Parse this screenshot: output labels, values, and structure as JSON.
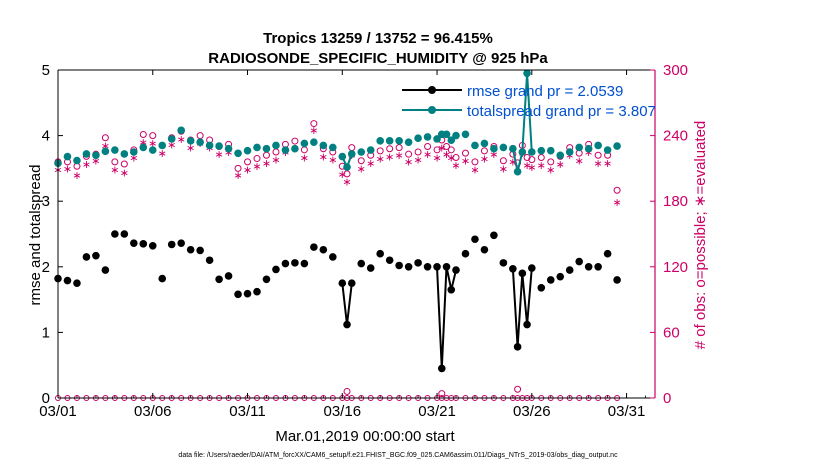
{
  "chart_data": {
    "type": "line",
    "title_line1": "Tropics 13259 / 13752 = 96.415%",
    "title_line2": "RADIOSONDE_SPECIFIC_HUMIDITY @ 925 hPa",
    "xlabel": "Mar.01,2019 00:00:00 start",
    "ylabel_left": "rmse and totalspread",
    "ylabel_right": "# of obs: o=possible; ∗=evaluated",
    "footnote": "data file: /Users/raeder/DAI/ATM_forcXX/CAM6_setup/f.e21.FHIST_BGC.f09_025.CAM6assim.011/Diags_NTrS_2019-03/obs_diag_output.nc",
    "xlim": [
      0,
      31.5
    ],
    "ylim_left": [
      0,
      5
    ],
    "ylim_right": [
      0,
      300
    ],
    "x_ticks": [
      0,
      5,
      10,
      15,
      20,
      25,
      30
    ],
    "x_tick_labels": [
      "03/01",
      "03/06",
      "03/11",
      "03/16",
      "03/21",
      "03/26",
      "03/31"
    ],
    "y_left_ticks": [
      "0",
      "1",
      "2",
      "3",
      "4",
      "5"
    ],
    "y_right_ticks": [
      "0",
      "60",
      "120",
      "180",
      "240",
      "300"
    ],
    "colors": {
      "rmse": "#000000",
      "totalspread": "#008080",
      "obs": "#cc0066",
      "legend_text": "#0050d0",
      "right_axis": "#cc0066"
    },
    "legend": [
      {
        "label": "rmse grand pr = 2.0539",
        "series": "rmse"
      },
      {
        "label": "totalspread grand pr = 3.807",
        "series": "totalspread"
      }
    ],
    "series": [
      {
        "name": "rmse",
        "values": [
          [
            0,
            1.82
          ],
          [
            0.5,
            1.79
          ],
          [
            1,
            1.75
          ],
          [
            1.5,
            2.15
          ],
          [
            2,
            2.17
          ],
          [
            2.5,
            1.95
          ],
          [
            3,
            2.5
          ],
          [
            3.5,
            2.5
          ],
          [
            4,
            2.36
          ],
          [
            4.5,
            2.35
          ],
          [
            5,
            2.32
          ],
          [
            5.5,
            1.82
          ],
          [
            6,
            2.34
          ],
          [
            6.5,
            2.36
          ],
          [
            7,
            2.26
          ],
          [
            7.5,
            2.25
          ],
          [
            8,
            2.1
          ],
          [
            8.5,
            1.81
          ],
          [
            9,
            1.86
          ],
          [
            9.5,
            1.58
          ],
          [
            10,
            1.59
          ],
          [
            10.5,
            1.62
          ],
          [
            11,
            1.81
          ],
          [
            11.5,
            1.96
          ],
          [
            12,
            2.05
          ],
          [
            12.5,
            2.06
          ],
          [
            13,
            2.05
          ],
          [
            13.5,
            2.3
          ],
          [
            14,
            2.26
          ],
          [
            14.5,
            2.15
          ],
          [
            15,
            1.75
          ],
          [
            15.25,
            1.12
          ],
          [
            15.5,
            1.75
          ],
          [
            16,
            2.05
          ],
          [
            16.5,
            1.98
          ],
          [
            17,
            2.2
          ],
          [
            17.5,
            2.1
          ],
          [
            18,
            2.02
          ],
          [
            18.5,
            2.0
          ],
          [
            19,
            2.06
          ],
          [
            19.5,
            2.0
          ],
          [
            20,
            2.0
          ],
          [
            20.25,
            0.45
          ],
          [
            20.5,
            2.0
          ],
          [
            20.75,
            1.65
          ],
          [
            21,
            1.95
          ],
          [
            21.5,
            2.2
          ],
          [
            22,
            2.42
          ],
          [
            22.5,
            2.26
          ],
          [
            23,
            2.48
          ],
          [
            23.5,
            2.06
          ],
          [
            24,
            1.97
          ],
          [
            24.25,
            0.78
          ],
          [
            24.5,
            1.9
          ],
          [
            24.75,
            1.12
          ],
          [
            25,
            1.98
          ],
          [
            25.5,
            1.68
          ],
          [
            26,
            1.8
          ],
          [
            26.5,
            1.85
          ],
          [
            27,
            1.95
          ],
          [
            27.5,
            2.08
          ],
          [
            28,
            2.0
          ],
          [
            28.5,
            2.0
          ],
          [
            29,
            2.2
          ],
          [
            29.5,
            1.8
          ]
        ]
      },
      {
        "name": "totalspread",
        "values": [
          [
            0,
            3.58
          ],
          [
            0.5,
            3.68
          ],
          [
            1,
            3.62
          ],
          [
            1.5,
            3.72
          ],
          [
            2,
            3.7
          ],
          [
            2.5,
            3.76
          ],
          [
            3,
            3.78
          ],
          [
            3.5,
            3.72
          ],
          [
            4,
            3.75
          ],
          [
            4.5,
            3.82
          ],
          [
            5,
            3.78
          ],
          [
            5.5,
            3.85
          ],
          [
            6,
            3.95
          ],
          [
            6.5,
            4.08
          ],
          [
            7,
            3.92
          ],
          [
            7.5,
            3.9
          ],
          [
            8,
            3.85
          ],
          [
            8.5,
            3.84
          ],
          [
            9,
            3.8
          ],
          [
            9.5,
            3.73
          ],
          [
            10,
            3.77
          ],
          [
            10.5,
            3.82
          ],
          [
            11,
            3.8
          ],
          [
            11.5,
            3.85
          ],
          [
            12,
            3.78
          ],
          [
            12.5,
            3.8
          ],
          [
            13,
            3.88
          ],
          [
            13.5,
            3.9
          ],
          [
            14,
            3.85
          ],
          [
            14.5,
            3.82
          ],
          [
            15,
            3.68
          ],
          [
            15.25,
            3.52
          ],
          [
            15.5,
            3.72
          ],
          [
            16,
            3.75
          ],
          [
            16.5,
            3.78
          ],
          [
            17,
            3.92
          ],
          [
            17.5,
            3.92
          ],
          [
            18,
            3.92
          ],
          [
            18.5,
            3.9
          ],
          [
            19,
            3.96
          ],
          [
            19.5,
            3.98
          ],
          [
            20,
            3.95
          ],
          [
            20.25,
            4.02
          ],
          [
            20.5,
            4.02
          ],
          [
            20.75,
            3.93
          ],
          [
            21,
            4.0
          ],
          [
            21.5,
            4.02
          ],
          [
            22,
            3.85
          ],
          [
            22.5,
            3.88
          ],
          [
            23,
            3.8
          ],
          [
            23.5,
            3.82
          ],
          [
            24,
            3.8
          ],
          [
            24.25,
            3.45
          ],
          [
            24.5,
            3.75
          ],
          [
            24.75,
            4.95
          ],
          [
            25,
            3.75
          ],
          [
            25.5,
            3.77
          ],
          [
            26,
            3.77
          ],
          [
            26.5,
            3.7
          ],
          [
            27,
            3.75
          ],
          [
            27.5,
            3.82
          ],
          [
            28,
            3.8
          ],
          [
            28.5,
            3.85
          ],
          [
            29,
            3.78
          ],
          [
            29.5,
            3.84
          ]
        ]
      },
      {
        "name": "obs_possible",
        "values": [
          [
            0,
            216
          ],
          [
            0.5,
            216
          ],
          [
            1,
            212
          ],
          [
            1.5,
            221
          ],
          [
            2,
            223
          ],
          [
            2.5,
            238
          ],
          [
            3,
            216
          ],
          [
            3.5,
            214
          ],
          [
            4,
            227
          ],
          [
            4.5,
            241
          ],
          [
            5,
            240
          ],
          [
            5.5,
            231
          ],
          [
            6,
            238
          ],
          [
            6.5,
            244
          ],
          [
            7,
            236
          ],
          [
            7.5,
            240
          ],
          [
            8,
            236
          ],
          [
            8.5,
            230
          ],
          [
            9,
            232
          ],
          [
            9.5,
            210
          ],
          [
            10,
            216
          ],
          [
            10.5,
            219
          ],
          [
            11,
            222
          ],
          [
            11.5,
            225
          ],
          [
            12,
            232
          ],
          [
            12.5,
            235
          ],
          [
            13,
            227
          ],
          [
            13.5,
            251
          ],
          [
            14,
            228
          ],
          [
            14.5,
            225
          ],
          [
            15,
            212
          ],
          [
            15.25,
            205
          ],
          [
            15.5,
            229
          ],
          [
            16,
            217
          ],
          [
            16.5,
            222
          ],
          [
            17,
            226
          ],
          [
            17.5,
            228
          ],
          [
            18,
            229
          ],
          [
            18.5,
            223
          ],
          [
            19,
            225
          ],
          [
            19.5,
            230
          ],
          [
            20,
            227
          ],
          [
            20.25,
            236
          ],
          [
            20.5,
            230
          ],
          [
            20.75,
            227
          ],
          [
            21,
            220
          ],
          [
            21.5,
            224
          ],
          [
            22,
            216
          ],
          [
            22.5,
            226
          ],
          [
            23,
            230
          ],
          [
            23.5,
            217
          ],
          [
            24,
            223
          ],
          [
            24.25,
            215
          ],
          [
            24.5,
            231
          ],
          [
            24.75,
            220
          ],
          [
            25,
            218
          ],
          [
            25.5,
            220
          ],
          [
            26,
            216
          ],
          [
            26.5,
            221
          ],
          [
            27,
            229
          ],
          [
            27.5,
            224
          ],
          [
            28,
            232
          ],
          [
            28.5,
            222
          ],
          [
            29,
            222
          ],
          [
            29.5,
            190
          ]
        ]
      },
      {
        "name": "obs_evaluated",
        "values": [
          [
            0,
            210
          ],
          [
            0.5,
            211
          ],
          [
            1,
            205
          ],
          [
            1.5,
            215
          ],
          [
            2,
            218
          ],
          [
            2.5,
            232
          ],
          [
            3,
            210
          ],
          [
            3.5,
            207
          ],
          [
            4,
            221
          ],
          [
            4.5,
            235
          ],
          [
            5,
            234
          ],
          [
            5.5,
            225
          ],
          [
            6,
            233
          ],
          [
            6.5,
            238
          ],
          [
            7,
            230
          ],
          [
            7.5,
            234
          ],
          [
            8,
            230
          ],
          [
            8.5,
            224
          ],
          [
            9,
            226
          ],
          [
            9.5,
            205
          ],
          [
            10,
            210
          ],
          [
            10.5,
            213
          ],
          [
            11,
            216
          ],
          [
            11.5,
            219
          ],
          [
            12,
            226
          ],
          [
            12.5,
            229
          ],
          [
            13,
            221
          ],
          [
            13.5,
            246
          ],
          [
            14,
            222
          ],
          [
            14.5,
            219
          ],
          [
            15,
            206
          ],
          [
            15.25,
            199
          ],
          [
            15.5,
            223
          ],
          [
            16,
            211
          ],
          [
            16.5,
            216
          ],
          [
            17,
            220
          ],
          [
            17.5,
            222
          ],
          [
            18,
            223
          ],
          [
            18.5,
            217
          ],
          [
            19,
            219
          ],
          [
            19.5,
            224
          ],
          [
            20,
            221
          ],
          [
            20.25,
            230
          ],
          [
            20.5,
            224
          ],
          [
            20.75,
            221
          ],
          [
            21,
            214
          ],
          [
            21.5,
            218
          ],
          [
            22,
            210
          ],
          [
            22.5,
            220
          ],
          [
            23,
            224
          ],
          [
            23.5,
            211
          ],
          [
            24,
            217
          ],
          [
            24.25,
            209
          ],
          [
            24.5,
            225
          ],
          [
            24.75,
            214
          ],
          [
            25,
            212
          ],
          [
            25.5,
            214
          ],
          [
            26,
            210
          ],
          [
            26.5,
            215
          ],
          [
            27,
            223
          ],
          [
            27.5,
            218
          ],
          [
            28,
            226
          ],
          [
            28.5,
            216
          ],
          [
            29,
            216
          ],
          [
            29.5,
            180
          ]
        ]
      },
      {
        "name": "obs_zero_line",
        "values": [
          [
            15.25,
            6
          ],
          [
            20.25,
            4
          ],
          [
            24.25,
            8
          ]
        ]
      }
    ]
  }
}
